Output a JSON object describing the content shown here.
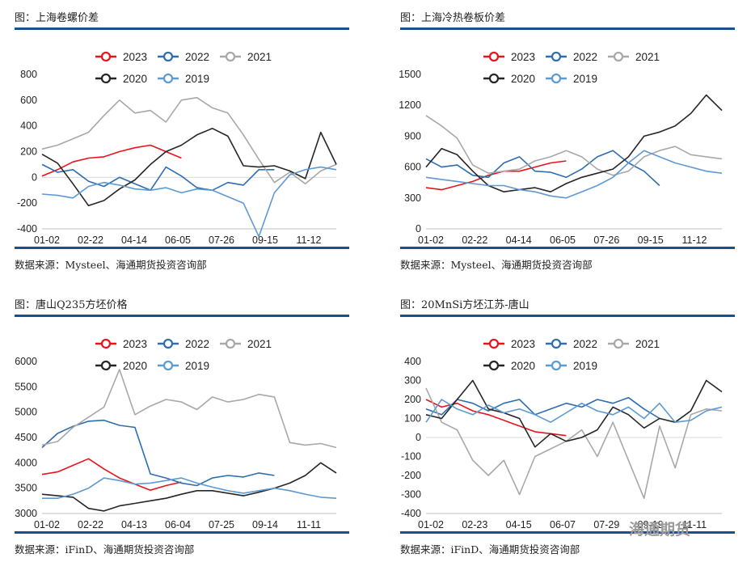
{
  "colors": {
    "2023": "#e8141c",
    "2022": "#2e6db0",
    "2021": "#a8a8a8",
    "2020": "#262626",
    "2019": "#5e9ad2",
    "rule": "#1f4e8c"
  },
  "watermark": "海通期货",
  "charts": [
    {
      "id": "chart-coil-rebar-spread",
      "title": "图：上海卷螺价差",
      "source": "数据来源：Mysteel、海通期货投资咨询部",
      "chart_data": {
        "type": "line",
        "title": "上海卷螺价差",
        "ylim": [
          -400,
          800
        ],
        "yticks": [
          -400,
          -200,
          0,
          200,
          400,
          600,
          800
        ],
        "xticks": [
          "01-02",
          "02-22",
          "04-14",
          "06-05",
          "07-26",
          "09-15",
          "11-12"
        ],
        "legend": [
          "2023",
          "2022",
          "2021",
          "2020",
          "2019"
        ],
        "series": [
          {
            "name": "2023",
            "values": [
              10,
              60,
              120,
              150,
              160,
              200,
              230,
              250,
              200,
              150
            ]
          },
          {
            "name": "2022",
            "values": [
              100,
              40,
              60,
              -30,
              -70,
              0,
              -50,
              -100,
              80,
              10,
              -80,
              -100,
              -40,
              -60,
              60,
              60
            ]
          },
          {
            "name": "2021",
            "values": [
              220,
              250,
              300,
              350,
              480,
              600,
              500,
              520,
              430,
              600,
              620,
              540,
              500,
              330,
              140,
              -40,
              40,
              -50,
              50,
              100
            ]
          },
          {
            "name": "2020",
            "values": [
              180,
              110,
              -50,
              -220,
              -180,
              -90,
              -20,
              100,
              200,
              250,
              330,
              380,
              320,
              90,
              80,
              90,
              50,
              -10,
              350,
              100
            ]
          },
          {
            "name": "2019",
            "values": [
              -130,
              -140,
              -160,
              -70,
              -40,
              -60,
              -90,
              -100,
              -80,
              -120,
              -90,
              -100,
              -150,
              -200,
              -460,
              -120,
              20,
              60,
              80,
              60
            ]
          }
        ]
      }
    },
    {
      "id": "chart-cold-hot-spread",
      "title": "图：上海冷热卷板价差",
      "source": "数据来源：Mysteel、海通期货投资咨询部",
      "chart_data": {
        "type": "line",
        "title": "上海冷热卷板价差",
        "ylim": [
          0,
          1500
        ],
        "yticks": [
          0,
          300,
          600,
          900,
          1200,
          1500
        ],
        "xticks": [
          "01-02",
          "02-22",
          "04-14",
          "06-05",
          "07-26",
          "09-15",
          "11-12"
        ],
        "legend": [
          "2023",
          "2022",
          "2021",
          "2020",
          "2019"
        ],
        "series": [
          {
            "name": "2023",
            "values": [
              400,
              380,
              420,
              460,
              520,
              560,
              560,
              600,
              640,
              660
            ]
          },
          {
            "name": "2022",
            "values": [
              680,
              600,
              620,
              520,
              500,
              640,
              700,
              560,
              550,
              500,
              580,
              700,
              760,
              640,
              560,
              420
            ]
          },
          {
            "name": "2021",
            "values": [
              1100,
              1000,
              880,
              620,
              540,
              560,
              580,
              660,
              700,
              760,
              700,
              580,
              520,
              560,
              700,
              760,
              800,
              720,
              700,
              680
            ]
          },
          {
            "name": "2020",
            "values": [
              600,
              780,
              720,
              560,
              420,
              360,
              380,
              400,
              360,
              440,
              500,
              540,
              580,
              700,
              900,
              940,
              1000,
              1120,
              1300,
              1150
            ]
          },
          {
            "name": "2019",
            "values": [
              500,
              480,
              460,
              440,
              420,
              420,
              380,
              360,
              320,
              300,
              360,
              420,
              500,
              640,
              760,
              700,
              640,
              600,
              560,
              540
            ]
          }
        ]
      }
    },
    {
      "id": "chart-tangshan-q235-billet",
      "title": "图：唐山Q235方坯价格",
      "source": "数据来源：iFinD、海通期货投资咨询部",
      "chart_data": {
        "type": "line",
        "title": "唐山Q235方坯价格",
        "ylim": [
          3000,
          6000
        ],
        "yticks": [
          3000,
          3500,
          4000,
          4500,
          5000,
          5500,
          6000
        ],
        "xticks": [
          "01-02",
          "02-22",
          "04-13",
          "06-04",
          "07-25",
          "09-14",
          "11-11"
        ],
        "legend": [
          "2023",
          "2022",
          "2021",
          "2020",
          "2019"
        ],
        "series": [
          {
            "name": "2023",
            "values": [
              3770,
              3820,
              3950,
              4080,
              3880,
              3700,
              3580,
              3460,
              3550,
              3620
            ]
          },
          {
            "name": "2022",
            "values": [
              4300,
              4580,
              4720,
              4820,
              4840,
              4740,
              4700,
              3780,
              3700,
              3600,
              3550,
              3700,
              3750,
              3720,
              3800,
              3750
            ]
          },
          {
            "name": "2021",
            "values": [
              4350,
              4420,
              4700,
              4900,
              5100,
              5840,
              4950,
              5120,
              5250,
              5200,
              5050,
              5300,
              5200,
              5250,
              5350,
              5300,
              4400,
              4350,
              4380,
              4300
            ]
          },
          {
            "name": "2020",
            "values": [
              3380,
              3350,
              3320,
              3100,
              3050,
              3150,
              3200,
              3250,
              3300,
              3380,
              3450,
              3450,
              3400,
              3350,
              3420,
              3500,
              3600,
              3750,
              4000,
              3800
            ]
          },
          {
            "name": "2019",
            "values": [
              3300,
              3300,
              3380,
              3500,
              3700,
              3650,
              3580,
              3600,
              3650,
              3700,
              3600,
              3520,
              3450,
              3400,
              3450,
              3500,
              3450,
              3380,
              3320,
              3300
            ]
          }
        ]
      }
    },
    {
      "id": "chart-20mnsi-jiangsu-tangshan",
      "title": "图：20MnSi方坯江苏-唐山",
      "source": "数据来源：iFinD、海通期货投资咨询部",
      "chart_data": {
        "type": "line",
        "title": "20MnSi方坯江苏-唐山",
        "ylim": [
          -400,
          400
        ],
        "yticks": [
          -400,
          -300,
          -200,
          -100,
          0,
          100,
          200,
          300,
          400
        ],
        "xticks": [
          "01-02",
          "02-23",
          "04-15",
          "06-07",
          "07-29",
          "09-19",
          "11-11"
        ],
        "legend": [
          "2023",
          "2022",
          "2021",
          "2020",
          "2019"
        ],
        "series": [
          {
            "name": "2023",
            "values": [
              200,
              160,
              180,
              140,
              120,
              90,
              60,
              30,
              20,
              10
            ]
          },
          {
            "name": "2022",
            "values": [
              150,
              120,
              200,
              180,
              140,
              180,
              200,
              120,
              150,
              180,
              160,
              200,
              180,
              210,
              150,
              100
            ]
          },
          {
            "name": "2021",
            "values": [
              260,
              80,
              40,
              -120,
              -200,
              -120,
              -300,
              -100,
              -60,
              -20,
              40,
              -100,
              80,
              -120,
              -320,
              60,
              -160,
              120,
              150,
              140
            ]
          },
          {
            "name": "2020",
            "values": [
              120,
              100,
              200,
              300,
              150,
              130,
              100,
              -50,
              20,
              -20,
              0,
              40,
              160,
              120,
              50,
              100,
              80,
              140,
              300,
              240
            ]
          },
          {
            "name": "2019",
            "values": [
              80,
              200,
              150,
              120,
              170,
              130,
              150,
              120,
              80,
              130,
              180,
              140,
              120,
              160,
              100,
              180,
              80,
              90,
              140,
              160
            ]
          }
        ]
      }
    }
  ]
}
